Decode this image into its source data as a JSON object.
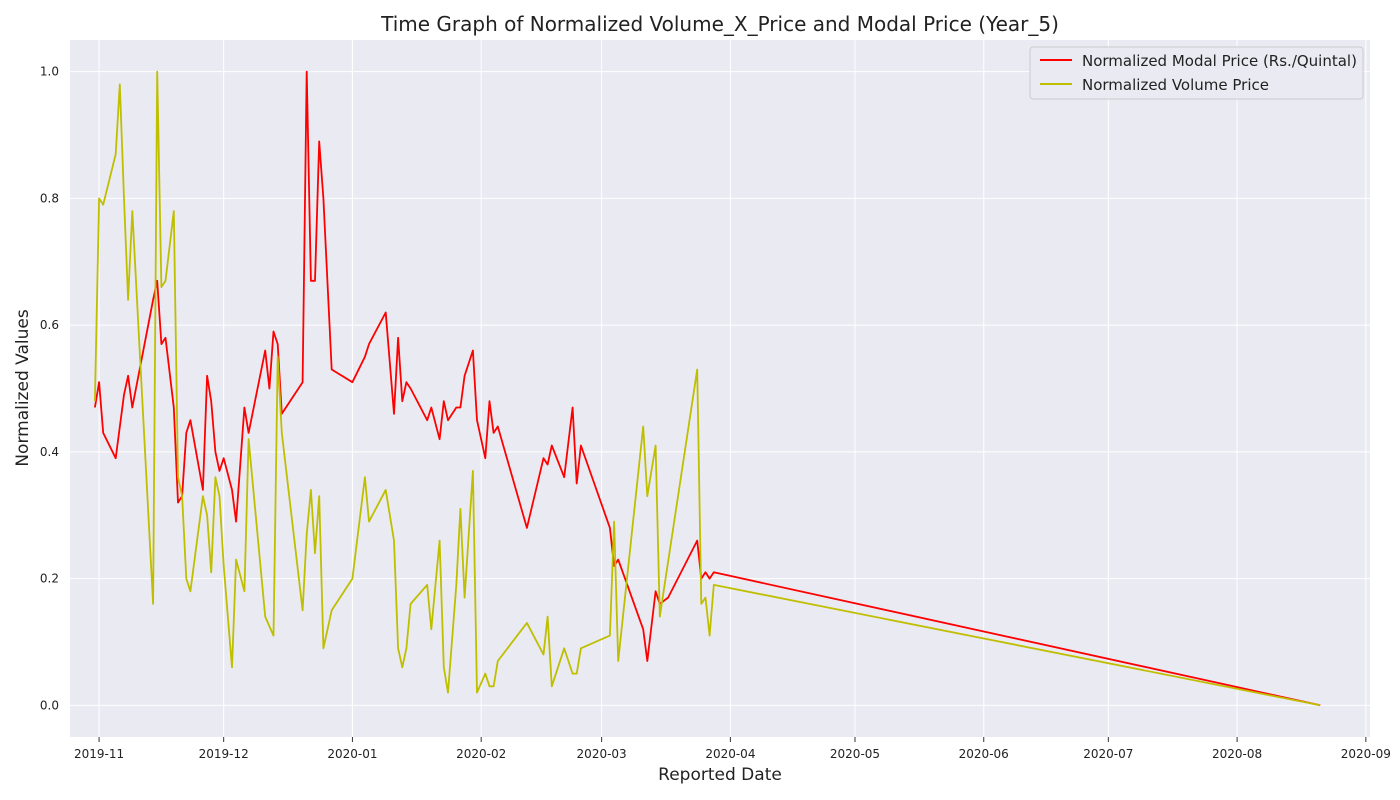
{
  "chart_data": {
    "type": "line",
    "title": "Time Graph of Normalized Volume_X_Price and Modal Price (Year_5)",
    "xlabel": "Reported Date",
    "ylabel": "Normalized Values",
    "x_axis": {
      "type": "date",
      "range": [
        "2019-10-25",
        "2020-09-02"
      ],
      "ticks": [
        "2019-11-01",
        "2019-12-01",
        "2020-01-01",
        "2020-02-01",
        "2020-03-01",
        "2020-04-01",
        "2020-05-01",
        "2020-06-01",
        "2020-07-01",
        "2020-08-01",
        "2020-09-01"
      ],
      "tick_labels": [
        "2019-11",
        "2019-12",
        "2020-01",
        "2020-02",
        "2020-03",
        "2020-04",
        "2020-05",
        "2020-06",
        "2020-07",
        "2020-08",
        "2020-09"
      ]
    },
    "y_axis": {
      "range": [
        -0.05,
        1.05
      ],
      "ticks": [
        0.0,
        0.2,
        0.4,
        0.6,
        0.8,
        1.0
      ],
      "tick_labels": [
        "0.0",
        "0.2",
        "0.4",
        "0.6",
        "0.8",
        "1.0"
      ]
    },
    "grid": true,
    "legend_position": "top-right",
    "series": [
      {
        "name": "Normalized Modal Price (Rs./Quintal)",
        "color": "#ff0000",
        "points": [
          [
            "2019-10-31",
            0.47
          ],
          [
            "2019-11-01",
            0.51
          ],
          [
            "2019-11-02",
            0.43
          ],
          [
            "2019-11-05",
            0.39
          ],
          [
            "2019-11-07",
            0.49
          ],
          [
            "2019-11-08",
            0.52
          ],
          [
            "2019-11-09",
            0.47
          ],
          [
            "2019-11-14",
            0.64
          ],
          [
            "2019-11-15",
            0.67
          ],
          [
            "2019-11-16",
            0.57
          ],
          [
            "2019-11-17",
            0.58
          ],
          [
            "2019-11-19",
            0.47
          ],
          [
            "2019-11-20",
            0.32
          ],
          [
            "2019-11-21",
            0.33
          ],
          [
            "2019-11-22",
            0.43
          ],
          [
            "2019-11-23",
            0.45
          ],
          [
            "2019-11-26",
            0.34
          ],
          [
            "2019-11-27",
            0.52
          ],
          [
            "2019-11-28",
            0.48
          ],
          [
            "2019-11-29",
            0.4
          ],
          [
            "2019-11-30",
            0.37
          ],
          [
            "2019-12-01",
            0.39
          ],
          [
            "2019-12-03",
            0.34
          ],
          [
            "2019-12-04",
            0.29
          ],
          [
            "2019-12-06",
            0.47
          ],
          [
            "2019-12-07",
            0.43
          ],
          [
            "2019-12-11",
            0.56
          ],
          [
            "2019-12-12",
            0.5
          ],
          [
            "2019-12-13",
            0.59
          ],
          [
            "2019-12-14",
            0.57
          ],
          [
            "2019-12-15",
            0.46
          ],
          [
            "2019-12-20",
            0.51
          ],
          [
            "2019-12-21",
            1.0
          ],
          [
            "2019-12-22",
            0.67
          ],
          [
            "2019-12-23",
            0.67
          ],
          [
            "2019-12-24",
            0.89
          ],
          [
            "2019-12-25",
            0.8
          ],
          [
            "2019-12-27",
            0.53
          ],
          [
            "2020-01-01",
            0.51
          ],
          [
            "2020-01-04",
            0.55
          ],
          [
            "2020-01-05",
            0.57
          ],
          [
            "2020-01-09",
            0.62
          ],
          [
            "2020-01-11",
            0.46
          ],
          [
            "2020-01-12",
            0.58
          ],
          [
            "2020-01-13",
            0.48
          ],
          [
            "2020-01-14",
            0.51
          ],
          [
            "2020-01-15",
            0.5
          ],
          [
            "2020-01-19",
            0.45
          ],
          [
            "2020-01-20",
            0.47
          ],
          [
            "2020-01-22",
            0.42
          ],
          [
            "2020-01-23",
            0.48
          ],
          [
            "2020-01-24",
            0.45
          ],
          [
            "2020-01-26",
            0.47
          ],
          [
            "2020-01-27",
            0.47
          ],
          [
            "2020-01-28",
            0.52
          ],
          [
            "2020-01-30",
            0.56
          ],
          [
            "2020-01-31",
            0.45
          ],
          [
            "2020-02-02",
            0.39
          ],
          [
            "2020-02-03",
            0.48
          ],
          [
            "2020-02-04",
            0.43
          ],
          [
            "2020-02-05",
            0.44
          ],
          [
            "2020-02-12",
            0.28
          ],
          [
            "2020-02-16",
            0.39
          ],
          [
            "2020-02-17",
            0.38
          ],
          [
            "2020-02-18",
            0.41
          ],
          [
            "2020-02-21",
            0.36
          ],
          [
            "2020-02-23",
            0.47
          ],
          [
            "2020-02-24",
            0.35
          ],
          [
            "2020-02-25",
            0.41
          ],
          [
            "2020-03-03",
            0.28
          ],
          [
            "2020-03-04",
            0.22
          ],
          [
            "2020-03-05",
            0.23
          ],
          [
            "2020-03-11",
            0.12
          ],
          [
            "2020-03-12",
            0.07
          ],
          [
            "2020-03-14",
            0.18
          ],
          [
            "2020-03-15",
            0.16
          ],
          [
            "2020-03-17",
            0.17
          ],
          [
            "2020-03-24",
            0.26
          ],
          [
            "2020-03-25",
            0.2
          ],
          [
            "2020-03-26",
            0.21
          ],
          [
            "2020-03-27",
            0.2
          ],
          [
            "2020-03-28",
            0.21
          ],
          [
            "2020-08-21",
            0.0
          ]
        ]
      },
      {
        "name": "Normalized Volume Price",
        "color": "#bfbf00",
        "points": [
          [
            "2019-10-31",
            0.48
          ],
          [
            "2019-11-01",
            0.8
          ],
          [
            "2019-11-02",
            0.79
          ],
          [
            "2019-11-05",
            0.87
          ],
          [
            "2019-11-06",
            0.98
          ],
          [
            "2019-11-07",
            0.8
          ],
          [
            "2019-11-08",
            0.64
          ],
          [
            "2019-11-09",
            0.78
          ],
          [
            "2019-11-14",
            0.16
          ],
          [
            "2019-11-15",
            1.0
          ],
          [
            "2019-11-16",
            0.66
          ],
          [
            "2019-11-17",
            0.67
          ],
          [
            "2019-11-19",
            0.78
          ],
          [
            "2019-11-20",
            0.36
          ],
          [
            "2019-11-21",
            0.33
          ],
          [
            "2019-11-22",
            0.2
          ],
          [
            "2019-11-23",
            0.18
          ],
          [
            "2019-11-26",
            0.33
          ],
          [
            "2019-11-27",
            0.3
          ],
          [
            "2019-11-28",
            0.21
          ],
          [
            "2019-11-29",
            0.36
          ],
          [
            "2019-11-30",
            0.33
          ],
          [
            "2019-12-01",
            0.22
          ],
          [
            "2019-12-03",
            0.06
          ],
          [
            "2019-12-04",
            0.23
          ],
          [
            "2019-12-06",
            0.18
          ],
          [
            "2019-12-07",
            0.42
          ],
          [
            "2019-12-11",
            0.14
          ],
          [
            "2019-12-13",
            0.11
          ],
          [
            "2019-12-14",
            0.55
          ],
          [
            "2019-12-15",
            0.43
          ],
          [
            "2019-12-20",
            0.15
          ],
          [
            "2019-12-21",
            0.27
          ],
          [
            "2019-12-22",
            0.34
          ],
          [
            "2019-12-23",
            0.24
          ],
          [
            "2019-12-24",
            0.33
          ],
          [
            "2019-12-25",
            0.09
          ],
          [
            "2019-12-27",
            0.15
          ],
          [
            "2020-01-01",
            0.2
          ],
          [
            "2020-01-04",
            0.36
          ],
          [
            "2020-01-05",
            0.29
          ],
          [
            "2020-01-09",
            0.34
          ],
          [
            "2020-01-11",
            0.26
          ],
          [
            "2020-01-12",
            0.09
          ],
          [
            "2020-01-13",
            0.06
          ],
          [
            "2020-01-14",
            0.09
          ],
          [
            "2020-01-15",
            0.16
          ],
          [
            "2020-01-19",
            0.19
          ],
          [
            "2020-01-20",
            0.12
          ],
          [
            "2020-01-22",
            0.26
          ],
          [
            "2020-01-23",
            0.06
          ],
          [
            "2020-01-24",
            0.02
          ],
          [
            "2020-01-26",
            0.19
          ],
          [
            "2020-01-27",
            0.31
          ],
          [
            "2020-01-28",
            0.17
          ],
          [
            "2020-01-30",
            0.37
          ],
          [
            "2020-01-31",
            0.02
          ],
          [
            "2020-02-02",
            0.05
          ],
          [
            "2020-02-03",
            0.03
          ],
          [
            "2020-02-04",
            0.03
          ],
          [
            "2020-02-05",
            0.07
          ],
          [
            "2020-02-12",
            0.13
          ],
          [
            "2020-02-16",
            0.08
          ],
          [
            "2020-02-17",
            0.14
          ],
          [
            "2020-02-18",
            0.03
          ],
          [
            "2020-02-21",
            0.09
          ],
          [
            "2020-02-23",
            0.05
          ],
          [
            "2020-02-24",
            0.05
          ],
          [
            "2020-02-25",
            0.09
          ],
          [
            "2020-03-03",
            0.11
          ],
          [
            "2020-03-04",
            0.29
          ],
          [
            "2020-03-05",
            0.07
          ],
          [
            "2020-03-11",
            0.44
          ],
          [
            "2020-03-12",
            0.33
          ],
          [
            "2020-03-14",
            0.41
          ],
          [
            "2020-03-15",
            0.14
          ],
          [
            "2020-03-24",
            0.53
          ],
          [
            "2020-03-25",
            0.16
          ],
          [
            "2020-03-26",
            0.17
          ],
          [
            "2020-03-27",
            0.11
          ],
          [
            "2020-03-28",
            0.19
          ],
          [
            "2020-08-21",
            0.0
          ]
        ]
      }
    ]
  }
}
